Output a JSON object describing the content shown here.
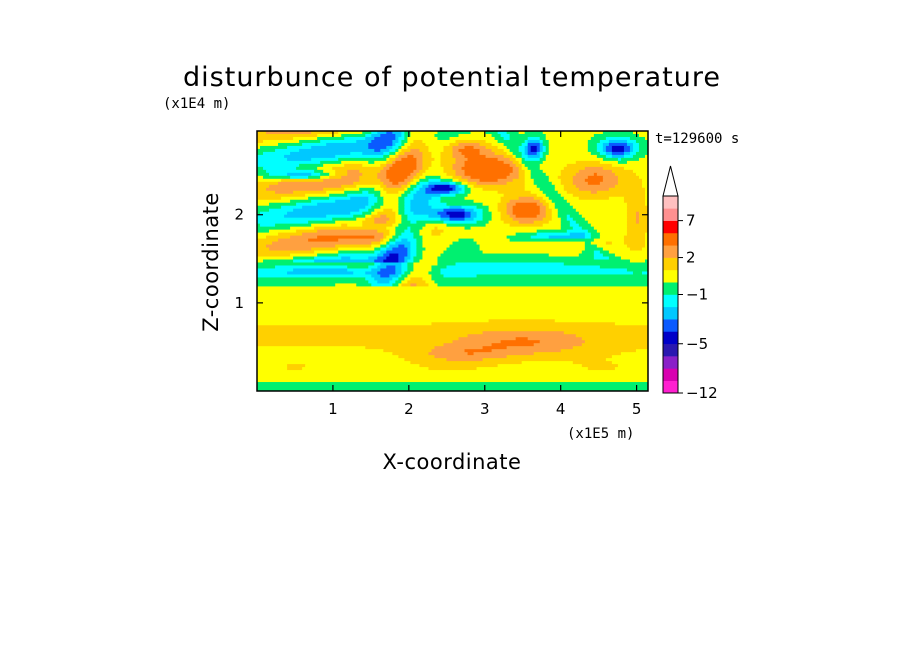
{
  "chart_data": {
    "type": "heatmap",
    "title": "disturbunce of potential temperature",
    "xlabel": "X-coordinate",
    "ylabel": "Z-coordinate",
    "x_unit": "(x1E5 m)",
    "y_unit": "(x1E4 m)",
    "time_label": "t=129600 s",
    "xlim": [
      0,
      5.15
    ],
    "ylim": [
      0,
      2.95
    ],
    "x_ticks": [
      1,
      2,
      3,
      4,
      5
    ],
    "y_ticks": [
      1,
      2
    ],
    "x_tick_labels": [
      "1",
      "2",
      "3",
      "4",
      "5"
    ],
    "y_tick_labels": [
      "1",
      "2"
    ],
    "colorbar": {
      "levels_bottom_to_top": [
        -12,
        -10,
        -8,
        -6,
        -5,
        -4,
        -3,
        -2,
        -1,
        0,
        1,
        2,
        3,
        5,
        7,
        9,
        12
      ],
      "colors_bottom_to_top": [
        "#ff1fd0",
        "#d800b0",
        "#8a20c8",
        "#2a18b0",
        "#0000c8",
        "#0a5aff",
        "#00c8ff",
        "#00ffff",
        "#00f070",
        "#ffff00",
        "#ffd000",
        "#ffa040",
        "#ff7000",
        "#ff0000",
        "#ff9090",
        "#ffc0c0",
        "#ffffff"
      ],
      "labels": [
        "7",
        "2",
        "−1",
        "−5",
        "−12"
      ],
      "label_levels": [
        7,
        2,
        -1,
        -5,
        -12
      ],
      "extend_top": true
    }
  }
}
